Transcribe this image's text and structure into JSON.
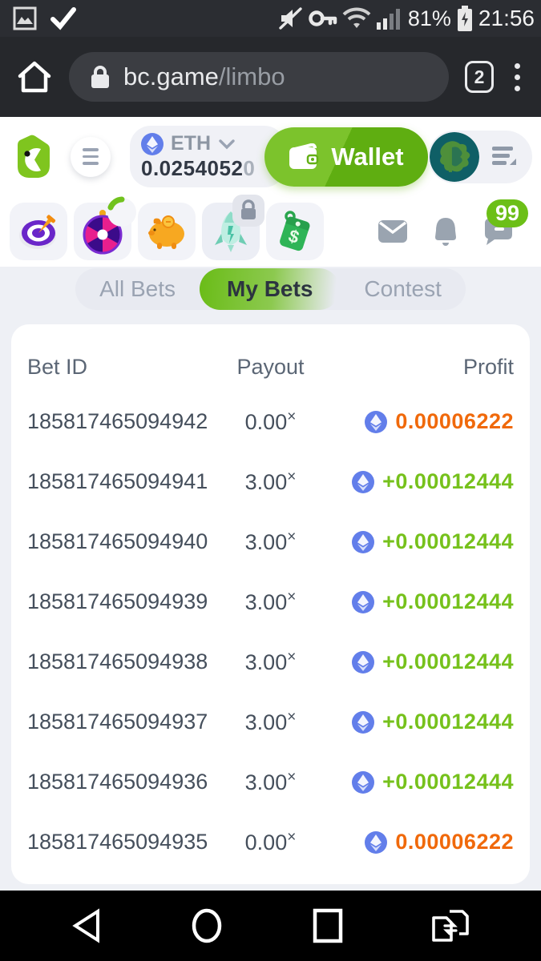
{
  "status_bar": {
    "battery_pct": "81%",
    "time": "21:56"
  },
  "browser": {
    "domain": "bc.game",
    "path": "/limbo",
    "tab_count": "2"
  },
  "header": {
    "currency": "ETH",
    "balance": "0.0254052",
    "balance_trailing": "0",
    "wallet_label": "Wallet"
  },
  "quickbar": {
    "chat_badge": "99"
  },
  "tabs": {
    "items": [
      {
        "label": "All Bets",
        "active": false
      },
      {
        "label": "My Bets",
        "active": true
      },
      {
        "label": "Contest",
        "active": false
      }
    ]
  },
  "table": {
    "columns": {
      "bet_id": "Bet ID",
      "payout": "Payout",
      "profit": "Profit"
    },
    "payout_suffix": "×",
    "rows": [
      {
        "id": "185817465094942",
        "payout": "0.00",
        "profit": "0.00006222",
        "status": "loss"
      },
      {
        "id": "185817465094941",
        "payout": "3.00",
        "profit": "+0.00012444",
        "status": "win"
      },
      {
        "id": "185817465094940",
        "payout": "3.00",
        "profit": "+0.00012444",
        "status": "win"
      },
      {
        "id": "185817465094939",
        "payout": "3.00",
        "profit": "+0.00012444",
        "status": "win"
      },
      {
        "id": "185817465094938",
        "payout": "3.00",
        "profit": "+0.00012444",
        "status": "win"
      },
      {
        "id": "185817465094937",
        "payout": "3.00",
        "profit": "+0.00012444",
        "status": "win"
      },
      {
        "id": "185817465094936",
        "payout": "3.00",
        "profit": "+0.00012444",
        "status": "win"
      },
      {
        "id": "185817465094935",
        "payout": "0.00",
        "profit": "0.00006222",
        "status": "loss"
      }
    ]
  },
  "colors": {
    "win": "#76c11c",
    "loss": "#f0690b",
    "accent_green": "#6cbf17",
    "eth_coin": "#627eea",
    "wallet_green": "#63b016"
  }
}
